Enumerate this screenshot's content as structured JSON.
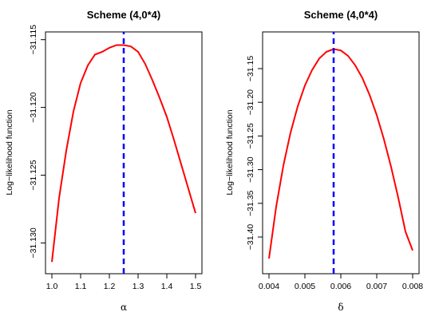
{
  "chart_data": [
    {
      "type": "line",
      "title": "Scheme (4,0*4)",
      "xlabel": "α",
      "ylabel": "Log−likelihood function",
      "xlim": [
        1.0,
        1.5
      ],
      "ylim": [
        -31.1318,
        -31.1149
      ],
      "xticks": [
        "1.0",
        "1.1",
        "1.2",
        "1.3",
        "1.4",
        "1.5"
      ],
      "xtick_values": [
        1.0,
        1.1,
        1.2,
        1.3,
        1.4,
        1.5
      ],
      "yticks": [
        "−31.115",
        "−31.120",
        "−31.125",
        "−31.130"
      ],
      "ytick_values": [
        -31.115,
        -31.12,
        -31.125,
        -31.13
      ],
      "grid": false,
      "curve_color": "#ff0000",
      "max_line_color": "#0000ff",
      "max_x": 1.25,
      "series": [
        {
          "x": [
            1.0,
            1.025,
            1.05,
            1.075,
            1.1,
            1.125,
            1.15,
            1.175,
            1.2,
            1.225,
            1.25,
            1.275,
            1.3,
            1.325,
            1.35,
            1.375,
            1.4,
            1.425,
            1.45,
            1.475,
            1.5
          ],
          "y": [
            -31.1314,
            -31.1267,
            -31.1232,
            -31.1203,
            -31.1182,
            -31.1169,
            -31.1161,
            -31.1159,
            -31.1156,
            -31.1154,
            -31.1154,
            -31.1155,
            -31.1159,
            -31.1168,
            -31.118,
            -31.1193,
            -31.1207,
            -31.1224,
            -31.1242,
            -31.126,
            -31.1278
          ]
        }
      ]
    },
    {
      "type": "line",
      "title": "Scheme (4,0*4)",
      "xlabel": "δ",
      "ylabel": "Log−likelihood function",
      "xlim": [
        0.004,
        0.008
      ],
      "ylim": [
        -31.445,
        -31.105
      ],
      "xticks": [
        "0.004",
        "0.005",
        "0.006",
        "0.007",
        "0.008"
      ],
      "xtick_values": [
        0.004,
        0.005,
        0.006,
        0.007,
        0.008
      ],
      "yticks": [
        "−31.15",
        "−31.20",
        "−31.25",
        "−31.30",
        "−31.35",
        "−31.40"
      ],
      "ytick_values": [
        -31.15,
        -31.2,
        -31.25,
        -31.3,
        -31.35,
        -31.4
      ],
      "grid": false,
      "curve_color": "#ff0000",
      "max_line_color": "#0000ff",
      "max_x": 0.0058,
      "series": [
        {
          "x": [
            0.004,
            0.0042,
            0.0044,
            0.0046,
            0.0048,
            0.005,
            0.0052,
            0.0054,
            0.0056,
            0.0058,
            0.006,
            0.0062,
            0.0064,
            0.0066,
            0.0068,
            0.007,
            0.0072,
            0.0074,
            0.0076,
            0.0078,
            0.008
          ],
          "y": [
            -31.432,
            -31.355,
            -31.294,
            -31.245,
            -31.206,
            -31.175,
            -31.152,
            -31.135,
            -31.125,
            -31.121,
            -31.123,
            -31.131,
            -31.145,
            -31.164,
            -31.189,
            -31.219,
            -31.255,
            -31.296,
            -31.342,
            -31.392,
            -31.42
          ]
        }
      ]
    }
  ]
}
